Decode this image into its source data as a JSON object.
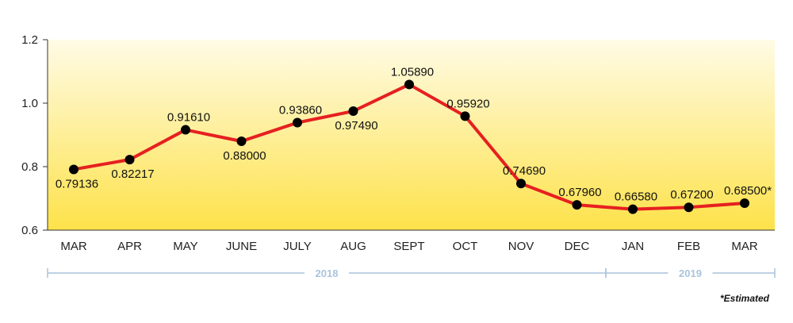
{
  "chart_data": {
    "type": "line",
    "categories": [
      "MAR",
      "APR",
      "MAY",
      "JUNE",
      "JULY",
      "AUG",
      "SEPT",
      "OCT",
      "NOV",
      "DEC",
      "JAN",
      "FEB",
      "MAR"
    ],
    "values": [
      0.79136,
      0.82217,
      0.9161,
      0.88,
      0.9386,
      0.9749,
      1.0589,
      0.9592,
      0.7469,
      0.6796,
      0.6658,
      0.672,
      0.685
    ],
    "data_labels": [
      "0.79136",
      "0.82217",
      "0.91610",
      "0.88000",
      "0.93860",
      "0.97490",
      "1.05890",
      "0.95920",
      "0.74690",
      "0.67960",
      "0.66580",
      "0.67200",
      "0.68500*"
    ],
    "title": "",
    "xlabel": "",
    "ylabel": "",
    "ylim": [
      0.6,
      1.2
    ],
    "yticks": [
      0.6,
      0.8,
      1.0,
      1.2
    ],
    "ytick_labels": [
      "0.6",
      "0.8",
      "1.0",
      "1.2"
    ],
    "grid": false,
    "line_color": "#e62020",
    "marker_color": "#000000",
    "background_gradient": [
      "#fffbe6",
      "#fde24a"
    ],
    "year_groups": [
      {
        "label": "2018",
        "start_index": 0,
        "end_index": 9
      },
      {
        "label": "2019",
        "start_index": 10,
        "end_index": 12
      }
    ],
    "year_bar_color": "#a9c4dc"
  },
  "footnote": "*Estimated"
}
